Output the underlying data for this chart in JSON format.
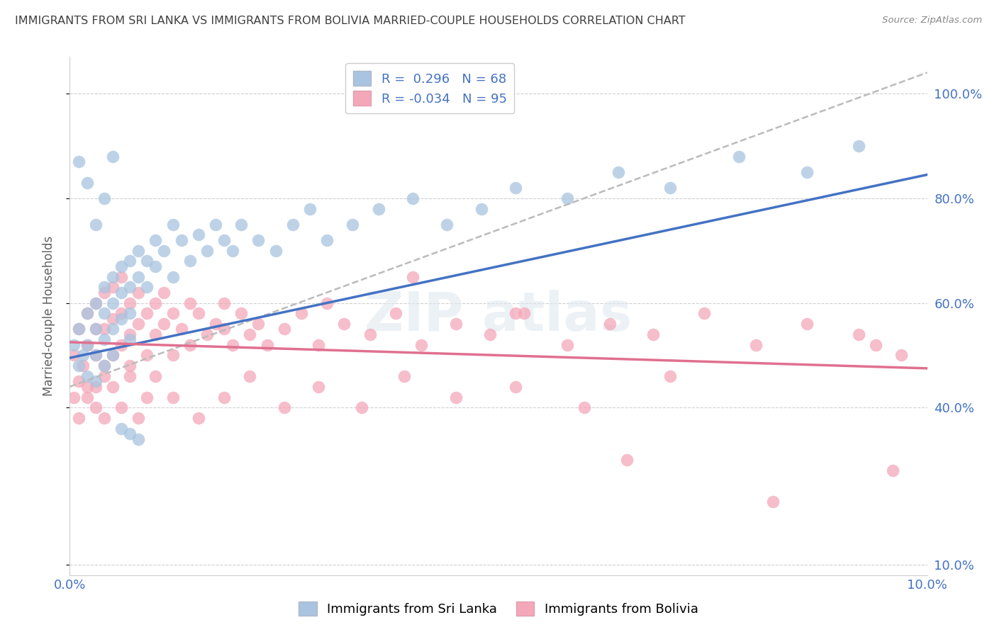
{
  "title": "IMMIGRANTS FROM SRI LANKA VS IMMIGRANTS FROM BOLIVIA MARRIED-COUPLE HOUSEHOLDS CORRELATION CHART",
  "source": "Source: ZipAtlas.com",
  "ylabel": "Married-couple Households",
  "legend_label1": "Immigrants from Sri Lanka",
  "legend_label2": "Immigrants from Bolivia",
  "R1": 0.296,
  "N1": 68,
  "R2": -0.034,
  "N2": 95,
  "color1": "#a8c4e0",
  "color2": "#f4a7b9",
  "line1_color": "#4472c4",
  "line2_color": "#e07090",
  "dash_color": "#bbbbbb",
  "background_color": "#ffffff",
  "grid_color": "#d0d0d0",
  "title_color": "#404040",
  "axis_label_color": "#4472c4",
  "xlim": [
    0.0,
    0.1
  ],
  "ylim": [
    0.08,
    1.07
  ],
  "yticks": [
    0.1,
    0.4,
    0.6,
    0.8,
    1.0
  ],
  "ytick_labels": [
    "10.0%",
    "40.0%",
    "60.0%",
    "80.0%",
    "100.0%"
  ],
  "sri_lanka_x": [
    0.0005,
    0.001,
    0.001,
    0.0015,
    0.002,
    0.002,
    0.002,
    0.003,
    0.003,
    0.003,
    0.003,
    0.004,
    0.004,
    0.004,
    0.004,
    0.005,
    0.005,
    0.005,
    0.005,
    0.006,
    0.006,
    0.006,
    0.007,
    0.007,
    0.007,
    0.007,
    0.008,
    0.008,
    0.009,
    0.009,
    0.01,
    0.01,
    0.011,
    0.012,
    0.012,
    0.013,
    0.014,
    0.015,
    0.016,
    0.017,
    0.018,
    0.019,
    0.02,
    0.022,
    0.024,
    0.026,
    0.028,
    0.03,
    0.033,
    0.036,
    0.04,
    0.044,
    0.048,
    0.052,
    0.058,
    0.064,
    0.07,
    0.078,
    0.086,
    0.092,
    0.001,
    0.002,
    0.003,
    0.004,
    0.005,
    0.006,
    0.007,
    0.008
  ],
  "sri_lanka_y": [
    0.52,
    0.55,
    0.48,
    0.5,
    0.58,
    0.52,
    0.46,
    0.6,
    0.55,
    0.5,
    0.45,
    0.63,
    0.58,
    0.53,
    0.48,
    0.65,
    0.6,
    0.55,
    0.5,
    0.67,
    0.62,
    0.57,
    0.68,
    0.63,
    0.58,
    0.53,
    0.7,
    0.65,
    0.68,
    0.63,
    0.72,
    0.67,
    0.7,
    0.75,
    0.65,
    0.72,
    0.68,
    0.73,
    0.7,
    0.75,
    0.72,
    0.7,
    0.75,
    0.72,
    0.7,
    0.75,
    0.78,
    0.72,
    0.75,
    0.78,
    0.8,
    0.75,
    0.78,
    0.82,
    0.8,
    0.85,
    0.82,
    0.88,
    0.85,
    0.9,
    0.87,
    0.83,
    0.75,
    0.8,
    0.88,
    0.36,
    0.35,
    0.34
  ],
  "bolivia_x": [
    0.0005,
    0.001,
    0.001,
    0.0015,
    0.002,
    0.002,
    0.002,
    0.003,
    0.003,
    0.003,
    0.003,
    0.004,
    0.004,
    0.004,
    0.005,
    0.005,
    0.005,
    0.006,
    0.006,
    0.006,
    0.007,
    0.007,
    0.007,
    0.008,
    0.008,
    0.009,
    0.009,
    0.01,
    0.01,
    0.011,
    0.011,
    0.012,
    0.012,
    0.013,
    0.014,
    0.014,
    0.015,
    0.016,
    0.017,
    0.018,
    0.019,
    0.02,
    0.021,
    0.022,
    0.023,
    0.025,
    0.027,
    0.029,
    0.032,
    0.035,
    0.038,
    0.041,
    0.045,
    0.049,
    0.053,
    0.058,
    0.063,
    0.068,
    0.074,
    0.08,
    0.086,
    0.092,
    0.097,
    0.0005,
    0.001,
    0.002,
    0.003,
    0.004,
    0.004,
    0.005,
    0.006,
    0.007,
    0.008,
    0.009,
    0.01,
    0.012,
    0.015,
    0.018,
    0.021,
    0.025,
    0.029,
    0.034,
    0.039,
    0.045,
    0.052,
    0.06,
    0.07,
    0.082,
    0.094,
    0.096,
    0.018,
    0.03,
    0.04,
    0.052,
    0.065
  ],
  "bolivia_y": [
    0.5,
    0.55,
    0.45,
    0.48,
    0.58,
    0.52,
    0.42,
    0.6,
    0.55,
    0.5,
    0.44,
    0.62,
    0.55,
    0.48,
    0.63,
    0.57,
    0.5,
    0.65,
    0.58,
    0.52,
    0.6,
    0.54,
    0.48,
    0.62,
    0.56,
    0.58,
    0.5,
    0.6,
    0.54,
    0.62,
    0.56,
    0.58,
    0.5,
    0.55,
    0.6,
    0.52,
    0.58,
    0.54,
    0.56,
    0.6,
    0.52,
    0.58,
    0.54,
    0.56,
    0.52,
    0.55,
    0.58,
    0.52,
    0.56,
    0.54,
    0.58,
    0.52,
    0.56,
    0.54,
    0.58,
    0.52,
    0.56,
    0.54,
    0.58,
    0.52,
    0.56,
    0.54,
    0.5,
    0.42,
    0.38,
    0.44,
    0.4,
    0.46,
    0.38,
    0.44,
    0.4,
    0.46,
    0.38,
    0.42,
    0.46,
    0.42,
    0.38,
    0.42,
    0.46,
    0.4,
    0.44,
    0.4,
    0.46,
    0.42,
    0.44,
    0.4,
    0.46,
    0.22,
    0.52,
    0.28,
    0.55,
    0.6,
    0.65,
    0.58,
    0.3
  ]
}
